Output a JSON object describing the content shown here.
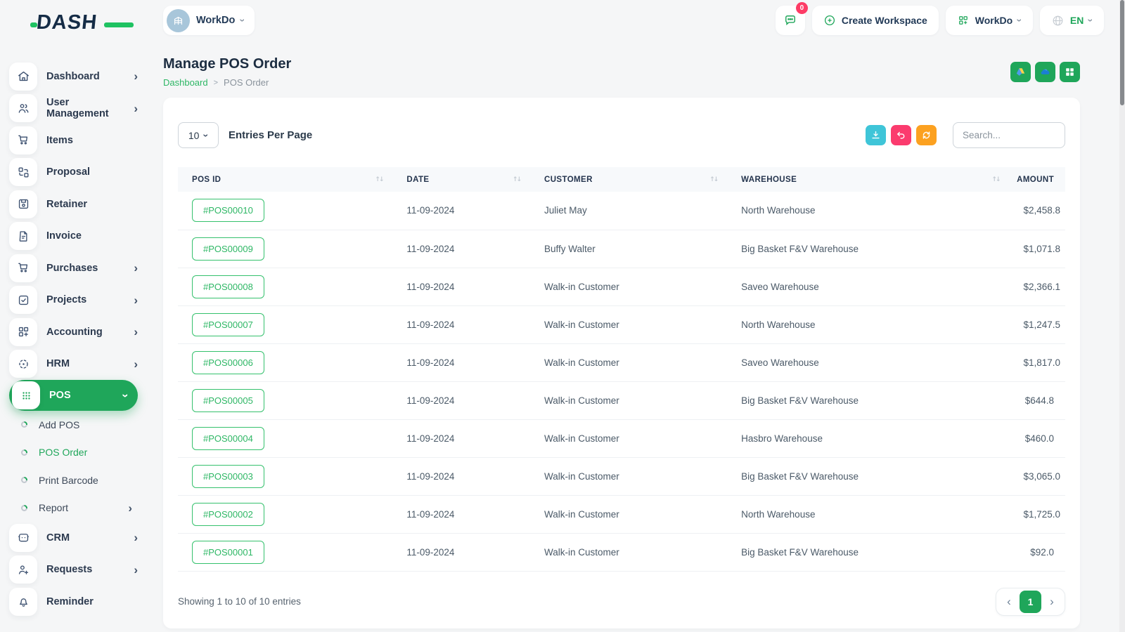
{
  "brand": {
    "logo_text": "DASH"
  },
  "header": {
    "workspace_selector": {
      "label": "WorkDo"
    },
    "chat_badge": "0",
    "create_workspace_label": "Create Workspace",
    "workdo_menu_label": "WorkDo",
    "language": "EN"
  },
  "sidebar": {
    "items": [
      {
        "label": "Dashboard",
        "icon": "home",
        "chevron": true,
        "active": false
      },
      {
        "label": "User Management",
        "icon": "users",
        "chevron": true,
        "active": false
      },
      {
        "label": "Items",
        "icon": "cart",
        "chevron": false,
        "active": false
      },
      {
        "label": "Proposal",
        "icon": "proposal",
        "chevron": false,
        "active": false
      },
      {
        "label": "Retainer",
        "icon": "retainer",
        "chevron": false,
        "active": false
      },
      {
        "label": "Invoice",
        "icon": "invoice",
        "chevron": false,
        "active": false
      },
      {
        "label": "Purchases",
        "icon": "cart",
        "chevron": true,
        "active": false
      },
      {
        "label": "Projects",
        "icon": "projects",
        "chevron": true,
        "active": false
      },
      {
        "label": "Accounting",
        "icon": "accounting",
        "chevron": true,
        "active": false
      },
      {
        "label": "HRM",
        "icon": "hrm",
        "chevron": true,
        "active": false
      },
      {
        "label": "POS",
        "icon": "pos",
        "chevron": true,
        "active": true
      }
    ],
    "pos_subitems": [
      {
        "label": "Add POS",
        "chevron": false,
        "active": false
      },
      {
        "label": "POS Order",
        "chevron": false,
        "active": true
      },
      {
        "label": "Print Barcode",
        "chevron": false,
        "active": false
      },
      {
        "label": "Report",
        "chevron": true,
        "active": false
      }
    ],
    "items_after": [
      {
        "label": "CRM",
        "icon": "crm",
        "chevron": true,
        "active": false
      },
      {
        "label": "Requests",
        "icon": "requests",
        "chevron": true,
        "active": false
      },
      {
        "label": "Reminder",
        "icon": "reminder",
        "chevron": false,
        "active": false
      }
    ]
  },
  "page": {
    "title": "Manage POS Order",
    "breadcrumb": {
      "home": "Dashboard",
      "separator": ">",
      "current": "POS Order"
    },
    "head_action_icons": [
      "google-drive",
      "onedrive",
      "grid"
    ]
  },
  "toolbar": {
    "entries_value": "10",
    "entries_label": "Entries Per Page",
    "search_placeholder": "Search...",
    "action_icons": [
      "download",
      "undo",
      "refresh"
    ]
  },
  "table": {
    "columns": [
      "POS ID",
      "DATE",
      "CUSTOMER",
      "WAREHOUSE",
      "AMOUNT"
    ],
    "rows": [
      {
        "pos_id": "#POS00010",
        "date": "11-09-2024",
        "customer": "Juliet May",
        "warehouse": "North Warehouse",
        "amount": "$2,458.8"
      },
      {
        "pos_id": "#POS00009",
        "date": "11-09-2024",
        "customer": "Buffy Walter",
        "warehouse": "Big Basket F&V Warehouse",
        "amount": "$1,071.8"
      },
      {
        "pos_id": "#POS00008",
        "date": "11-09-2024",
        "customer": "Walk-in Customer",
        "warehouse": "Saveo Warehouse",
        "amount": "$2,366.1"
      },
      {
        "pos_id": "#POS00007",
        "date": "11-09-2024",
        "customer": "Walk-in Customer",
        "warehouse": "North Warehouse",
        "amount": "$1,247.5"
      },
      {
        "pos_id": "#POS00006",
        "date": "11-09-2024",
        "customer": "Walk-in Customer",
        "warehouse": "Saveo Warehouse",
        "amount": "$1,817.0"
      },
      {
        "pos_id": "#POS00005",
        "date": "11-09-2024",
        "customer": "Walk-in Customer",
        "warehouse": "Big Basket F&V Warehouse",
        "amount": "$644.8"
      },
      {
        "pos_id": "#POS00004",
        "date": "11-09-2024",
        "customer": "Walk-in Customer",
        "warehouse": "Hasbro Warehouse",
        "amount": "$460.0"
      },
      {
        "pos_id": "#POS00003",
        "date": "11-09-2024",
        "customer": "Walk-in Customer",
        "warehouse": "Big Basket F&V Warehouse",
        "amount": "$3,065.0"
      },
      {
        "pos_id": "#POS00002",
        "date": "11-09-2024",
        "customer": "Walk-in Customer",
        "warehouse": "North Warehouse",
        "amount": "$1,725.0"
      },
      {
        "pos_id": "#POS00001",
        "date": "11-09-2024",
        "customer": "Walk-in Customer",
        "warehouse": "Big Basket F&V Warehouse",
        "amount": "$92.0"
      }
    ]
  },
  "footer": {
    "showing_text": "Showing 1 to 10 of 10 entries",
    "pagination": {
      "prev": "‹",
      "current_page": "1",
      "next": "›"
    }
  },
  "colors": {
    "primary_green": "#1fa65a",
    "link_green": "#2eb765",
    "teal": "#3fc5d8",
    "pink": "#fb3b6e",
    "orange": "#fca120",
    "badge_red": "#fd3c66",
    "title_navy": "#1c2d41",
    "background": "#f5f6f7"
  }
}
